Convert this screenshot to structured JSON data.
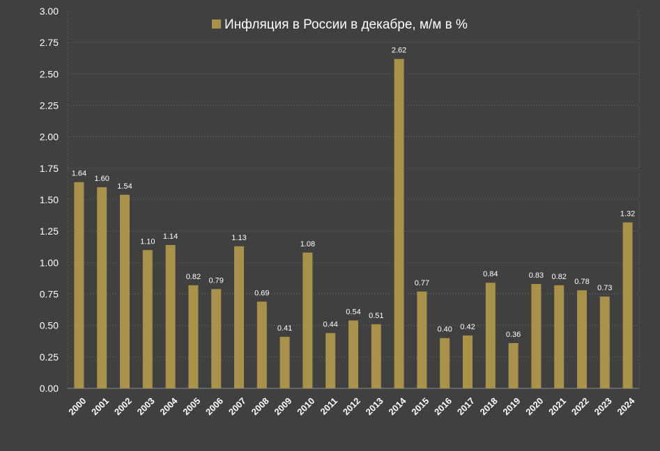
{
  "chart_data": {
    "type": "bar",
    "title": "",
    "xlabel": "",
    "ylabel": "",
    "ylim": [
      0,
      3
    ],
    "yticks": [
      "0.00",
      "0.25",
      "0.50",
      "0.75",
      "1.00",
      "1.25",
      "1.50",
      "1.75",
      "2.00",
      "2.25",
      "2.50",
      "2.75",
      "3.00"
    ],
    "grid": true,
    "legend_position": "top-center",
    "categories": [
      "2000",
      "2001",
      "2002",
      "2003",
      "2004",
      "2005",
      "2006",
      "2007",
      "2008",
      "2009",
      "2010",
      "2011",
      "2012",
      "2013",
      "2014",
      "2015",
      "2016",
      "2017",
      "2018",
      "2019",
      "2020",
      "2021",
      "2022",
      "2023",
      "2024"
    ],
    "series": [
      {
        "name": "Инфляция в России в декабре, м/м в %",
        "color": "#a8924a",
        "values": [
          1.64,
          1.6,
          1.54,
          1.1,
          1.14,
          0.82,
          0.79,
          1.13,
          0.69,
          0.41,
          1.08,
          0.44,
          0.54,
          0.51,
          2.62,
          0.77,
          0.4,
          0.42,
          0.84,
          0.36,
          0.83,
          0.82,
          0.78,
          0.73,
          1.32
        ],
        "labels": [
          "1.64",
          "1.60",
          "1.54",
          "1.10",
          "1.14",
          "0.82",
          "0.79",
          "1.13",
          "0.69",
          "0.41",
          "1.08",
          "0.44",
          "0.54",
          "0.51",
          "2.62",
          "0.77",
          "0.40",
          "0.42",
          "0.84",
          "0.36",
          "0.83",
          "0.82",
          "0.78",
          "0.73",
          "1.32"
        ]
      }
    ],
    "colors": {
      "background": "#404040",
      "grid": "#5a5a5a",
      "axis": "#8a8a8a",
      "text": "#ffffff"
    }
  }
}
